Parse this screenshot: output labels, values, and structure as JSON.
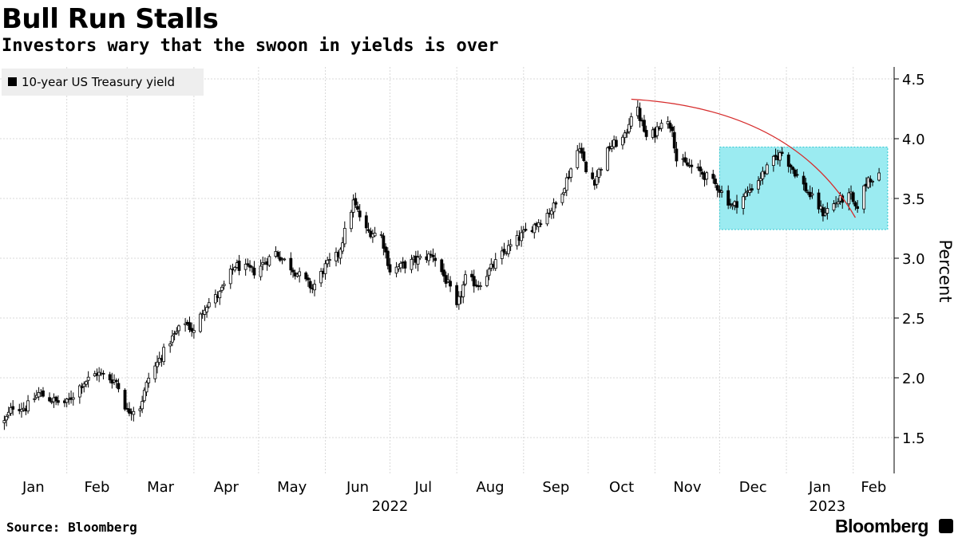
{
  "header": {
    "title": "Bull Run Stalls",
    "subtitle": "Investors wary that the swoon in yields is over"
  },
  "footer": {
    "source": "Source: Bloomberg",
    "brand": "Bloomberg"
  },
  "colors": {
    "candle": "#000000",
    "grid": "#d9d9d9",
    "trendline": "#d62c2c",
    "highlight_fill": "#9bebf1",
    "highlight_border": "#2fc6cf",
    "legend_bg": "#eeeeee"
  },
  "chart_data": {
    "type": "candlestick",
    "title": "Bull Run Stalls",
    "subtitle": "Investors wary that the swoon in yields is over",
    "ylabel": "Percent",
    "xlabel": "",
    "ylim": [
      1.2,
      4.6
    ],
    "yticks": [
      1.5,
      2.0,
      2.5,
      3.0,
      3.5,
      4.0,
      4.5
    ],
    "ytick_labels": [
      "1.5",
      "2.0",
      "2.5",
      "3.0",
      "3.5",
      "4.0",
      "4.5"
    ],
    "grid": true,
    "legend": {
      "label": "10-year US Treasury yield",
      "position": "top-left"
    },
    "x_months": [
      "Jan",
      "Feb",
      "Mar",
      "Apr",
      "May",
      "Jun",
      "Jul",
      "Aug",
      "Sep",
      "Oct",
      "Nov",
      "Dec",
      "Jan",
      "Feb"
    ],
    "x_years": [
      "2022",
      "2023"
    ],
    "series": [
      {
        "name": "10-year US Treasury yield",
        "anchor_points": [
          [
            "2022-01-03",
            1.63
          ],
          [
            "2022-01-07",
            1.76
          ],
          [
            "2022-01-13",
            1.75
          ],
          [
            "2022-01-19",
            1.87
          ],
          [
            "2022-01-27",
            1.8
          ],
          [
            "2022-02-01",
            1.79
          ],
          [
            "2022-02-08",
            1.95
          ],
          [
            "2022-02-15",
            2.04
          ],
          [
            "2022-02-24",
            1.97
          ],
          [
            "2022-03-01",
            1.72
          ],
          [
            "2022-03-07",
            1.76
          ],
          [
            "2022-03-11",
            2.0
          ],
          [
            "2022-03-21",
            2.31
          ],
          [
            "2022-03-28",
            2.47
          ],
          [
            "2022-04-01",
            2.38
          ],
          [
            "2022-04-06",
            2.6
          ],
          [
            "2022-04-13",
            2.7
          ],
          [
            "2022-04-20",
            2.94
          ],
          [
            "2022-04-29",
            2.89
          ],
          [
            "2022-05-09",
            3.05
          ],
          [
            "2022-05-18",
            2.89
          ],
          [
            "2022-05-26",
            2.75
          ],
          [
            "2022-06-01",
            2.93
          ],
          [
            "2022-06-07",
            3.03
          ],
          [
            "2022-06-14",
            3.47
          ],
          [
            "2022-06-20",
            3.23
          ],
          [
            "2022-06-27",
            3.19
          ],
          [
            "2022-07-01",
            2.9
          ],
          [
            "2022-07-06",
            2.93
          ],
          [
            "2022-07-14",
            2.99
          ],
          [
            "2022-07-21",
            3.03
          ],
          [
            "2022-07-28",
            2.78
          ],
          [
            "2022-08-01",
            2.58
          ],
          [
            "2022-08-05",
            2.83
          ],
          [
            "2022-08-11",
            2.78
          ],
          [
            "2022-08-22",
            3.03
          ],
          [
            "2022-08-31",
            3.19
          ],
          [
            "2022-09-09",
            3.32
          ],
          [
            "2022-09-16",
            3.45
          ],
          [
            "2022-09-22",
            3.7
          ],
          [
            "2022-09-27",
            3.95
          ],
          [
            "2022-09-30",
            3.72
          ],
          [
            "2022-10-04",
            3.65
          ],
          [
            "2022-10-11",
            3.93
          ],
          [
            "2022-10-18",
            4.01
          ],
          [
            "2022-10-21",
            4.21
          ],
          [
            "2022-10-24",
            4.23
          ],
          [
            "2022-10-28",
            4.01
          ],
          [
            "2022-11-01",
            4.05
          ],
          [
            "2022-11-04",
            4.16
          ],
          [
            "2022-11-09",
            4.1
          ],
          [
            "2022-11-11",
            3.82
          ],
          [
            "2022-11-17",
            3.77
          ],
          [
            "2022-11-23",
            3.71
          ],
          [
            "2022-11-30",
            3.6
          ],
          [
            "2022-12-07",
            3.43
          ],
          [
            "2022-12-14",
            3.55
          ],
          [
            "2022-12-20",
            3.68
          ],
          [
            "2022-12-27",
            3.84
          ],
          [
            "2022-12-30",
            3.88
          ],
          [
            "2023-01-05",
            3.72
          ],
          [
            "2023-01-11",
            3.55
          ],
          [
            "2023-01-18",
            3.38
          ],
          [
            "2023-01-25",
            3.48
          ],
          [
            "2023-01-31",
            3.52
          ],
          [
            "2023-02-02",
            3.4
          ],
          [
            "2023-02-08",
            3.67
          ],
          [
            "2023-02-13",
            3.68
          ]
        ]
      }
    ],
    "annotations": [
      {
        "type": "trendline",
        "from": [
          "2022-10-21",
          4.33
        ],
        "to": [
          "2023-02-02",
          3.34
        ]
      },
      {
        "type": "highlight_box",
        "x_from": "2022-12-01",
        "x_to": "2023-02-17",
        "y_from": 3.24,
        "y_to": 3.93
      }
    ]
  }
}
